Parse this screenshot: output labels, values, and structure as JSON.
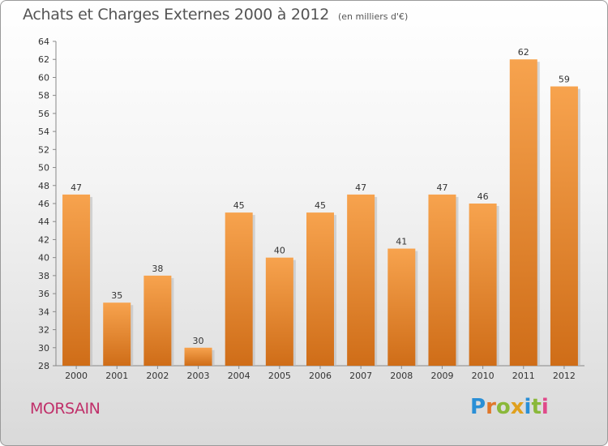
{
  "header": {
    "title": "Achats et Charges Externes 2000 à 2012",
    "subtitle": "(en milliers d'€)"
  },
  "footer": {
    "location": "MORSAIN",
    "brand_letters": [
      {
        "char": "P",
        "color": "#2a8fd6"
      },
      {
        "char": "r",
        "color": "#e0772a"
      },
      {
        "char": "o",
        "color": "#8ab83a"
      },
      {
        "char": "x",
        "color": "#e0a01e"
      },
      {
        "char": "i",
        "color": "#2a8fd6"
      },
      {
        "char": "t",
        "color": "#8ab83a"
      },
      {
        "char": "i",
        "color": "#e04a8a"
      }
    ]
  },
  "chart_data": {
    "type": "bar",
    "categories": [
      "2000",
      "2001",
      "2002",
      "2003",
      "2004",
      "2005",
      "2006",
      "2007",
      "2008",
      "2009",
      "2010",
      "2011",
      "2012"
    ],
    "values": [
      47,
      35,
      38,
      30,
      45,
      40,
      45,
      47,
      41,
      47,
      46,
      62,
      59
    ],
    "ylim": [
      28,
      64
    ],
    "yticks": [
      28,
      30,
      32,
      34,
      36,
      38,
      40,
      42,
      44,
      46,
      48,
      50,
      52,
      54,
      56,
      58,
      60,
      62,
      64
    ],
    "grid": false,
    "bar_color_top": "#f7a34e",
    "bar_color_bottom": "#cf6d18"
  }
}
